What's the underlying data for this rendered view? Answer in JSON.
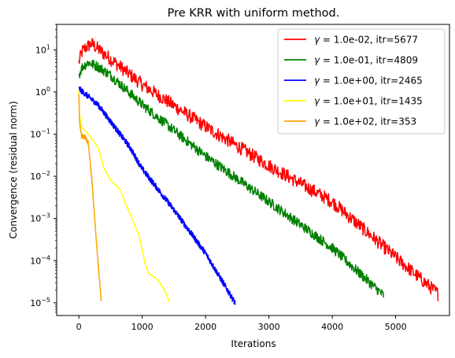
{
  "chart_data": {
    "type": "line",
    "title": "Pre KRR with uniform method.",
    "xlabel": "Iterations",
    "ylabel": "Convergence (residual norm)",
    "xlim": [
      -350,
      5850
    ],
    "ylim": [
      5e-06,
      40
    ],
    "yscale": "log",
    "grid": false,
    "legend_position": "top-right",
    "x_ticks": [
      {
        "value": 0,
        "label": "0"
      },
      {
        "value": 1000,
        "label": "1000"
      },
      {
        "value": 2000,
        "label": "2000"
      },
      {
        "value": 3000,
        "label": "3000"
      },
      {
        "value": 4000,
        "label": "4000"
      },
      {
        "value": 5000,
        "label": "5000"
      }
    ],
    "y_ticks": [
      {
        "value": 1e-05,
        "base": "10",
        "exp": "−5"
      },
      {
        "value": 0.0001,
        "base": "10",
        "exp": "−4"
      },
      {
        "value": 0.001,
        "base": "10",
        "exp": "−3"
      },
      {
        "value": 0.01,
        "base": "10",
        "exp": "−2"
      },
      {
        "value": 0.1,
        "base": "10",
        "exp": "−1"
      },
      {
        "value": 1,
        "base": "10",
        "exp": "0"
      },
      {
        "value": 10,
        "base": "10",
        "exp": "1"
      }
    ],
    "series": [
      {
        "name": "γ = 1.0e-02, itr=5677",
        "legend_symbol": "γ",
        "legend_rest": " = 1.0e-02, itr=5677",
        "color": "#ff0000",
        "noise": 0.16,
        "points": [
          [
            0,
            5
          ],
          [
            50,
            9
          ],
          [
            100,
            11
          ],
          [
            200,
            14
          ],
          [
            400,
            8
          ],
          [
            1000,
            1.5
          ],
          [
            2000,
            0.15
          ],
          [
            3000,
            0.018
          ],
          [
            4000,
            0.0025
          ],
          [
            5000,
            0.00012
          ],
          [
            5677,
            1.6e-05
          ]
        ]
      },
      {
        "name": "γ = 1.0e-01, itr=4809",
        "legend_symbol": "γ",
        "legend_rest": " = 1.0e-01, itr=4809",
        "color": "#008000",
        "noise": 0.12,
        "points": [
          [
            0,
            2.5
          ],
          [
            60,
            4
          ],
          [
            150,
            5
          ],
          [
            300,
            4
          ],
          [
            500,
            2.5
          ],
          [
            1000,
            0.5
          ],
          [
            2000,
            0.03
          ],
          [
            3000,
            0.0025
          ],
          [
            4000,
            0.0002
          ],
          [
            4809,
            1.5e-05
          ]
        ]
      },
      {
        "name": "γ = 1.0e+00, itr=2465",
        "legend_symbol": "γ",
        "legend_rest": " = 1.0e+00, itr=2465",
        "color": "#0000ff",
        "noise": 0.07,
        "points": [
          [
            0,
            1.2
          ],
          [
            100,
            0.9
          ],
          [
            300,
            0.5
          ],
          [
            500,
            0.2
          ],
          [
            800,
            0.05
          ],
          [
            1000,
            0.015
          ],
          [
            1500,
            0.0016
          ],
          [
            2000,
            0.00015
          ],
          [
            2465,
            1e-05
          ]
        ]
      },
      {
        "name": "γ = 1.0e+01, itr=1435",
        "legend_symbol": "γ",
        "legend_rest": " = 1.0e+01, itr=1435",
        "color": "#ffff00",
        "noise": 0,
        "points": [
          [
            0,
            1.1
          ],
          [
            10,
            0.3
          ],
          [
            40,
            0.15
          ],
          [
            150,
            0.1
          ],
          [
            300,
            0.05
          ],
          [
            400,
            0.015
          ],
          [
            500,
            0.008
          ],
          [
            650,
            0.005
          ],
          [
            750,
            0.002
          ],
          [
            850,
            0.0009
          ],
          [
            950,
            0.0004
          ],
          [
            1050,
            8e-05
          ],
          [
            1100,
            5e-05
          ],
          [
            1250,
            3.5e-05
          ],
          [
            1350,
            2e-05
          ],
          [
            1435,
            1e-05
          ]
        ]
      },
      {
        "name": "γ = 1.0e+02, itr=353",
        "legend_symbol": "γ",
        "legend_rest": " = 1.0e+02, itr=353",
        "color": "#ffa500",
        "noise": 0.05,
        "points": [
          [
            0,
            0.9
          ],
          [
            10,
            0.2
          ],
          [
            40,
            0.09
          ],
          [
            100,
            0.085
          ],
          [
            150,
            0.06
          ],
          [
            200,
            0.01
          ],
          [
            250,
            0.001
          ],
          [
            300,
            0.0001
          ],
          [
            330,
            3e-05
          ],
          [
            353,
            1e-05
          ]
        ]
      }
    ]
  }
}
